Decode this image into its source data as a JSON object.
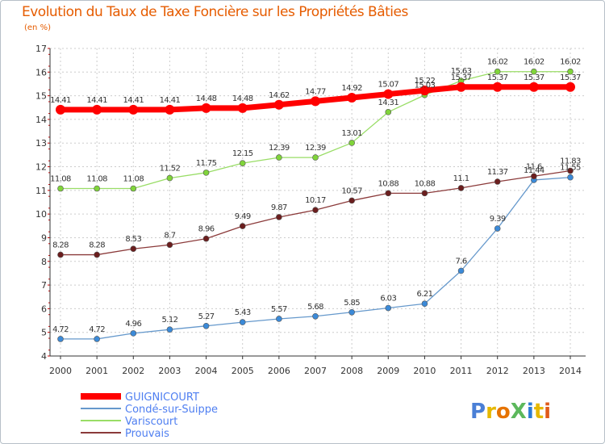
{
  "title": "Evolution du Taux de Taxe Foncière sur les Propriétés Bâties",
  "unit_label": "(en %)",
  "logo_text": "ProXiti",
  "colors": {
    "title": "#e65c00",
    "axis": "#333333",
    "grid": "#cccccc",
    "legend_text": "#4f7ff1"
  },
  "chart_data": {
    "type": "line",
    "title": "Evolution du Taux de Taxe Foncière sur les Propriétés Bâties",
    "ylabel": "(en %)",
    "xlabel": "",
    "ylim": [
      4,
      17
    ],
    "yticks": [
      4,
      5,
      6,
      7,
      8,
      9,
      10,
      11,
      12,
      13,
      14,
      15,
      16,
      17
    ],
    "grid": true,
    "legend_position": "bottom-left",
    "x": [
      "2000",
      "2001",
      "2002",
      "2003",
      "2004",
      "2005",
      "2006",
      "2007",
      "2008",
      "2009",
      "2010",
      "2011",
      "2012",
      "2013",
      "2014"
    ],
    "series": [
      {
        "name": "GUIGNICOURT",
        "color": "#ff0000",
        "style": "bold",
        "values": [
          14.41,
          14.41,
          14.41,
          14.41,
          14.48,
          14.48,
          14.62,
          14.77,
          14.92,
          15.07,
          15.22,
          15.37,
          15.37,
          15.37,
          15.37
        ],
        "labels": [
          "14.41",
          "14.41",
          "14.41",
          "14.41",
          "14.48",
          "14.48",
          "14.62",
          "14.77",
          "14.92",
          "15.07",
          "15.22",
          "15.37",
          "15.37",
          "15.37",
          "15.37"
        ]
      },
      {
        "name": "Condé-sur-Suippe",
        "color": "#6699cc",
        "marker": "#3b8ad8",
        "style": "thin",
        "values": [
          4.72,
          4.72,
          4.96,
          5.12,
          5.27,
          5.43,
          5.57,
          5.68,
          5.85,
          6.03,
          6.21,
          7.6,
          9.39,
          11.44,
          11.55
        ],
        "labels": [
          "4.72",
          "4.72",
          "4.96",
          "5.12",
          "5.27",
          "5.43",
          "5.57",
          "5.68",
          "5.85",
          "6.03",
          "6.21",
          "7.6",
          "9.39",
          "11.44",
          "11.55"
        ]
      },
      {
        "name": "Variscourt",
        "color": "#99dd66",
        "marker": "#80d43a",
        "style": "thin",
        "values": [
          11.08,
          11.08,
          11.08,
          11.52,
          11.75,
          12.15,
          12.39,
          12.39,
          13.01,
          14.31,
          15.03,
          15.63,
          16.02,
          16.02,
          16.02
        ],
        "labels": [
          "11.08",
          "11.08",
          "11.08",
          "11.52",
          "11.75",
          "12.15",
          "12.39",
          "12.39",
          "13.01",
          "14.31",
          "15.03",
          "15.63",
          "16.02",
          "16.02",
          "16.02"
        ]
      },
      {
        "name": "Prouvais",
        "color": "#8b3a3a",
        "marker": "#6b1e1e",
        "style": "thin",
        "values": [
          8.28,
          8.28,
          8.53,
          8.7,
          8.96,
          9.49,
          9.87,
          10.17,
          10.57,
          10.88,
          10.88,
          11.1,
          11.37,
          11.6,
          11.83
        ],
        "labels": [
          "8.28",
          "8.28",
          "8.53",
          "8.7",
          "8.96",
          "9.49",
          "9.87",
          "10.17",
          "10.57",
          "10.88",
          "10.88",
          "11.1",
          "11.37",
          "11.6",
          "11.83"
        ]
      }
    ]
  }
}
